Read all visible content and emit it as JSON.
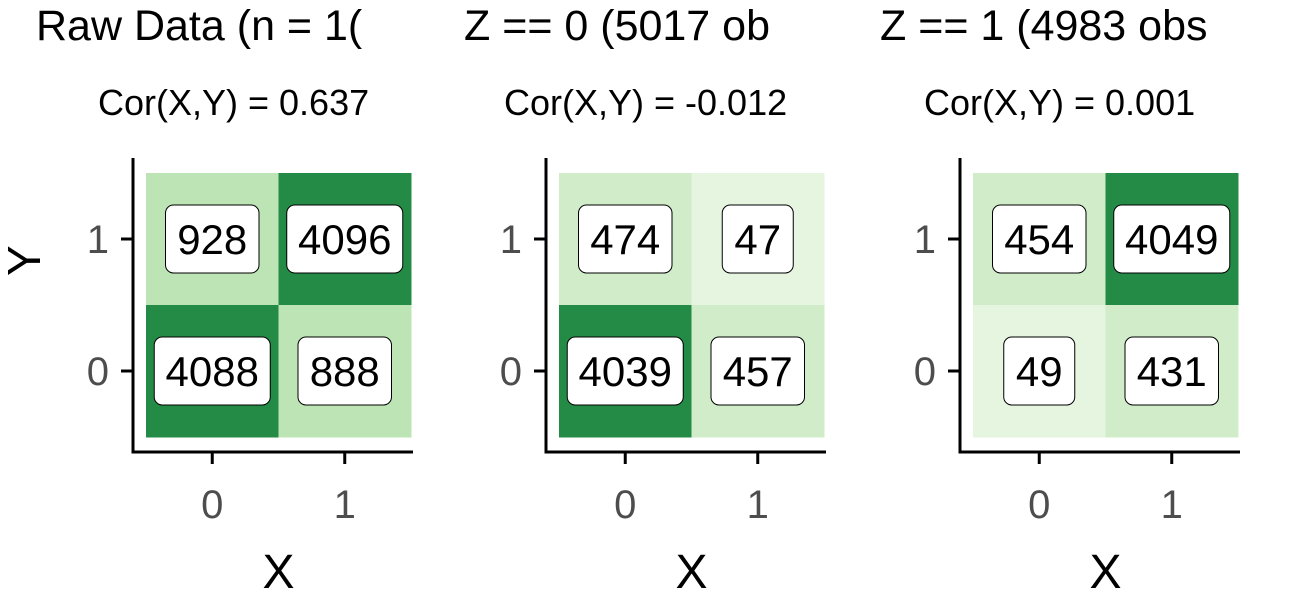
{
  "colors": {
    "very_light": "#e5f5e0",
    "light": "#d0ecc9",
    "medium": "#bce4b5",
    "dark": "#238b45",
    "label_bg": "#ffffff",
    "label_border": "#000000",
    "axis": "#000000",
    "tick_text": "#4d4d4d"
  },
  "chart_data": [
    {
      "type": "heatmap",
      "title": "Raw Data (n = 1(",
      "subtitle": "Cor(X,Y) = 0.637",
      "xlabel": "X",
      "ylabel": "Y",
      "x_categories": [
        "0",
        "1"
      ],
      "y_categories": [
        "0",
        "1"
      ],
      "cells": [
        {
          "x": "0",
          "y": "1",
          "count": 928,
          "shade": "medium"
        },
        {
          "x": "1",
          "y": "1",
          "count": 4096,
          "shade": "dark"
        },
        {
          "x": "0",
          "y": "0",
          "count": 4088,
          "shade": "dark"
        },
        {
          "x": "1",
          "y": "0",
          "count": 888,
          "shade": "medium"
        }
      ]
    },
    {
      "type": "heatmap",
      "title": "Z == 0 (5017 ob",
      "subtitle": "Cor(X,Y) = -0.012",
      "xlabel": "X",
      "ylabel": "",
      "x_categories": [
        "0",
        "1"
      ],
      "y_categories": [
        "0",
        "1"
      ],
      "cells": [
        {
          "x": "0",
          "y": "1",
          "count": 474,
          "shade": "light"
        },
        {
          "x": "1",
          "y": "1",
          "count": 47,
          "shade": "very_light"
        },
        {
          "x": "0",
          "y": "0",
          "count": 4039,
          "shade": "dark"
        },
        {
          "x": "1",
          "y": "0",
          "count": 457,
          "shade": "light"
        }
      ]
    },
    {
      "type": "heatmap",
      "title": "Z == 1 (4983 obs",
      "subtitle": "Cor(X,Y) = 0.001",
      "xlabel": "X",
      "ylabel": "",
      "x_categories": [
        "0",
        "1"
      ],
      "y_categories": [
        "0",
        "1"
      ],
      "cells": [
        {
          "x": "0",
          "y": "1",
          "count": 454,
          "shade": "light"
        },
        {
          "x": "1",
          "y": "1",
          "count": 4049,
          "shade": "dark"
        },
        {
          "x": "0",
          "y": "0",
          "count": 49,
          "shade": "very_light"
        },
        {
          "x": "1",
          "y": "0",
          "count": 431,
          "shade": "light"
        }
      ]
    }
  ]
}
